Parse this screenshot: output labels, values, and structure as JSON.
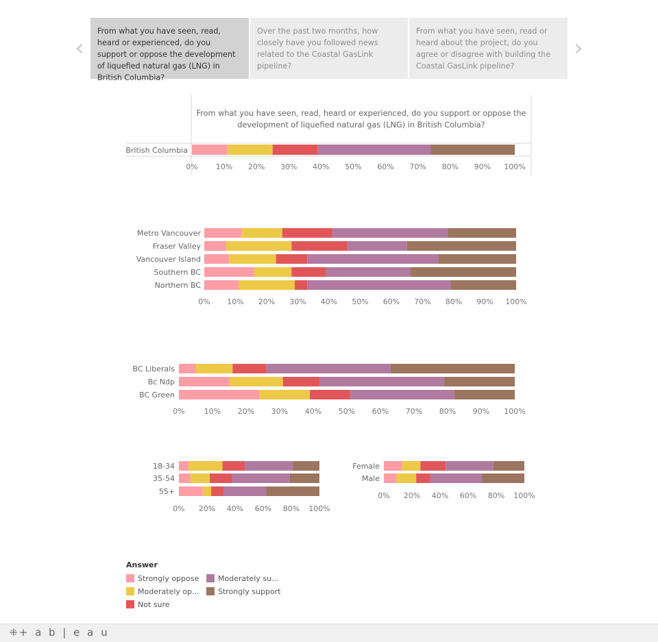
{
  "story": {
    "points": [
      {
        "text": "From what you have seen, read, heard or experienced, do you support or oppose the development of liquefied natural gas (LNG) in British Columbia?",
        "active": true
      },
      {
        "text": "Over the past two months, how closely have you followed news related to the Coastal GasLink pipeline?",
        "active": false
      },
      {
        "text": "From what you have seen, read or heard about the project, do you agree or disagree with building the Coastal GasLink pipeline?",
        "active": false
      }
    ],
    "prev_icon": "chevron-left-icon",
    "next_icon": "chevron-right-icon",
    "prev_glyph": "‹",
    "next_glyph": "›"
  },
  "colors": {
    "Strongly oppose": "#ff9da7",
    "Moderately oppose": "#edc948",
    "Not sure": "#e15759",
    "Moderately support": "#b07aa1",
    "Strongly support": "#9c755f"
  },
  "chart_data": [
    {
      "type": "bar",
      "orientation": "horizontal",
      "stacked": "100%",
      "title": "From what you have seen, read, heard or experienced, do you support or oppose the development of liquefied natural gas (LNG) in British Columbia?",
      "categories": [
        "British Columbia"
      ],
      "series": [
        {
          "name": "Strongly oppose",
          "values": [
            11
          ]
        },
        {
          "name": "Moderately oppose",
          "values": [
            14
          ]
        },
        {
          "name": "Not sure",
          "values": [
            14
          ]
        },
        {
          "name": "Moderately support",
          "values": [
            35
          ]
        },
        {
          "name": "Strongly support",
          "values": [
            26
          ]
        }
      ],
      "xlim": [
        0,
        100
      ],
      "x_ticks": [
        "0%",
        "10%",
        "20%",
        "30%",
        "40%",
        "50%",
        "60%",
        "70%",
        "80%",
        "90%",
        "100%"
      ]
    },
    {
      "type": "bar",
      "orientation": "horizontal",
      "stacked": "100%",
      "categories": [
        "Metro Vancouver",
        "Fraser Valley",
        "Vancouver Island",
        "Southern BC",
        "Northern BC"
      ],
      "series": [
        {
          "name": "Strongly oppose",
          "values": [
            12,
            7,
            8,
            16,
            11
          ]
        },
        {
          "name": "Moderately oppose",
          "values": [
            13,
            21,
            15,
            12,
            18
          ]
        },
        {
          "name": "Not sure",
          "values": [
            16,
            18,
            10,
            11,
            4
          ]
        },
        {
          "name": "Moderately support",
          "values": [
            37,
            19,
            42,
            27,
            46
          ]
        },
        {
          "name": "Strongly support",
          "values": [
            22,
            35,
            25,
            34,
            21
          ]
        }
      ],
      "xlim": [
        0,
        100
      ],
      "x_ticks": [
        "0%",
        "10%",
        "20%",
        "30%",
        "40%",
        "50%",
        "60%",
        "70%",
        "80%",
        "90%",
        "100%"
      ]
    },
    {
      "type": "bar",
      "orientation": "horizontal",
      "stacked": "100%",
      "categories": [
        "BC Liberals",
        "Bc Ndp",
        "BC Green"
      ],
      "series": [
        {
          "name": "Strongly oppose",
          "values": [
            5,
            15,
            24
          ]
        },
        {
          "name": "Moderately oppose",
          "values": [
            11,
            16,
            15
          ]
        },
        {
          "name": "Not sure",
          "values": [
            10,
            11,
            12
          ]
        },
        {
          "name": "Moderately support",
          "values": [
            37,
            37,
            31
          ]
        },
        {
          "name": "Strongly support",
          "values": [
            37,
            21,
            18
          ]
        }
      ],
      "xlim": [
        0,
        100
      ],
      "x_ticks": [
        "0%",
        "10%",
        "20%",
        "30%",
        "40%",
        "50%",
        "60%",
        "70%",
        "80%",
        "90%",
        "100%"
      ]
    },
    {
      "type": "bar",
      "orientation": "horizontal",
      "stacked": "100%",
      "categories": [
        "18-34",
        "35-54",
        "55+"
      ],
      "series": [
        {
          "name": "Strongly oppose",
          "values": [
            7,
            8,
            17
          ]
        },
        {
          "name": "Moderately oppose",
          "values": [
            24,
            14,
            6
          ]
        },
        {
          "name": "Not sure",
          "values": [
            16,
            16,
            9
          ]
        },
        {
          "name": "Moderately support",
          "values": [
            34,
            41,
            30
          ]
        },
        {
          "name": "Strongly support",
          "values": [
            19,
            21,
            38
          ]
        }
      ],
      "xlim": [
        0,
        100
      ],
      "x_ticks": [
        "0%",
        "20%",
        "40%",
        "60%",
        "80%",
        "100%"
      ]
    },
    {
      "type": "bar",
      "orientation": "horizontal",
      "stacked": "100%",
      "categories": [
        "Female",
        "Male"
      ],
      "series": [
        {
          "name": "Strongly oppose",
          "values": [
            13,
            9
          ]
        },
        {
          "name": "Moderately oppose",
          "values": [
            13,
            14
          ]
        },
        {
          "name": "Not sure",
          "values": [
            18,
            10
          ]
        },
        {
          "name": "Moderately support",
          "values": [
            34,
            37
          ]
        },
        {
          "name": "Strongly support",
          "values": [
            22,
            30
          ]
        }
      ],
      "xlim": [
        0,
        100
      ],
      "x_ticks": [
        "0%",
        "20%",
        "40%",
        "60%",
        "80%",
        "100%"
      ]
    }
  ],
  "legend": {
    "title": "Answer",
    "items": [
      "Strongly oppose",
      "Moderately op...",
      "Not sure",
      "Moderately su...",
      "Strongly support"
    ]
  },
  "footer": {
    "logo_text": "+ a b | e a u",
    "logo_icon": "tableau-icon"
  }
}
